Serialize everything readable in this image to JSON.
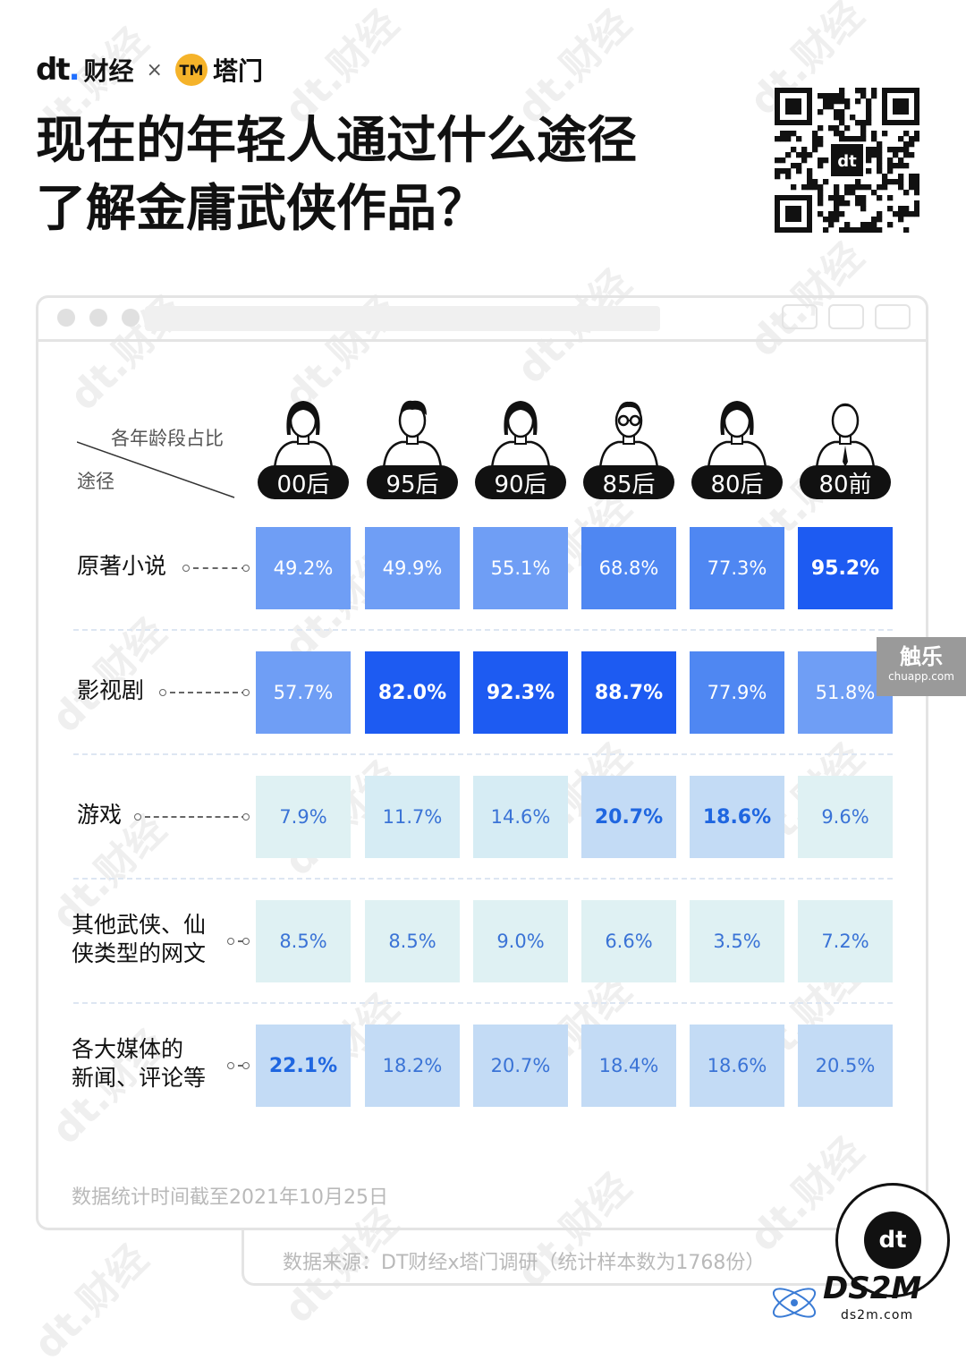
{
  "brand": {
    "dt_logo": "dt",
    "dt_name": "财经",
    "times": "×",
    "partner_badge": "TM",
    "partner_name": "塔门"
  },
  "title": {
    "line1": "现在的年轻人通过什么途径",
    "line2": "了解金庸武侠作品？"
  },
  "qr_center_logo": "dt",
  "table_header": {
    "top": "各年龄段占比",
    "left": "途径"
  },
  "colors": {
    "dark_cell": "#1d5bf2",
    "mid_cell": "#4f87f2",
    "light_cell": "#6f9ef5",
    "pale_blue": "#c3dbf5",
    "pale": "#d6ecf4",
    "palest": "#dff1f3",
    "label_blue": "#1f66e0"
  },
  "chart_data": {
    "type": "heatmap",
    "title": "现在的年轻人通过什么途径了解金庸武侠作品？",
    "columns": [
      "00后",
      "95后",
      "90后",
      "85后",
      "80后",
      "80前"
    ],
    "rows": [
      {
        "name": "原著小说",
        "values": [
          49.2,
          49.9,
          55.1,
          68.8,
          77.3,
          95.2
        ],
        "labels": [
          "49.2%",
          "49.9%",
          "55.1%",
          "68.8%",
          "77.3%",
          "95.2%"
        ],
        "highlight": [
          false,
          false,
          false,
          false,
          false,
          true
        ]
      },
      {
        "name": "影视剧",
        "values": [
          57.7,
          82.0,
          92.3,
          88.7,
          77.9,
          51.8
        ],
        "labels": [
          "57.7%",
          "82.0%",
          "92.3%",
          "88.7%",
          "77.9%",
          "51.8%"
        ],
        "highlight": [
          false,
          true,
          true,
          true,
          false,
          false
        ]
      },
      {
        "name": "游戏",
        "values": [
          7.9,
          11.7,
          14.6,
          20.7,
          18.6,
          9.6
        ],
        "labels": [
          "7.9%",
          "11.7%",
          "14.6%",
          "20.7%",
          "18.6%",
          "9.6%"
        ],
        "highlight": [
          false,
          false,
          false,
          true,
          true,
          false
        ]
      },
      {
        "name": "其他武侠、仙侠类型的网文",
        "lines": [
          "其他武侠、仙",
          "侠类型的网文"
        ],
        "values": [
          8.5,
          8.5,
          9.0,
          6.6,
          3.5,
          7.2
        ],
        "labels": [
          "8.5%",
          "8.5%",
          "9.0%",
          "6.6%",
          "3.5%",
          "7.2%"
        ],
        "highlight": [
          false,
          false,
          false,
          false,
          false,
          false
        ]
      },
      {
        "name": "各大媒体的新闻、评论等",
        "lines": [
          "各大媒体的",
          "新闻、评论等"
        ],
        "values": [
          22.1,
          18.2,
          20.7,
          18.4,
          18.6,
          20.5
        ],
        "labels": [
          "22.1%",
          "18.2%",
          "20.7%",
          "18.4%",
          "18.6%",
          "20.5%"
        ],
        "highlight": [
          true,
          false,
          false,
          false,
          false,
          false
        ]
      }
    ]
  },
  "footnote": "数据统计时间截至2021年10月25日",
  "source": "数据来源：DT财经x塔门调研（统计样本数为1768份）",
  "overlays": {
    "watermark": "dt.财经",
    "chuapp_name": "触乐",
    "chuapp_url": "chuapp.com",
    "ds2m_name": "DS2M",
    "ds2m_url": "ds2m.com",
    "corner_logo": "dt"
  }
}
